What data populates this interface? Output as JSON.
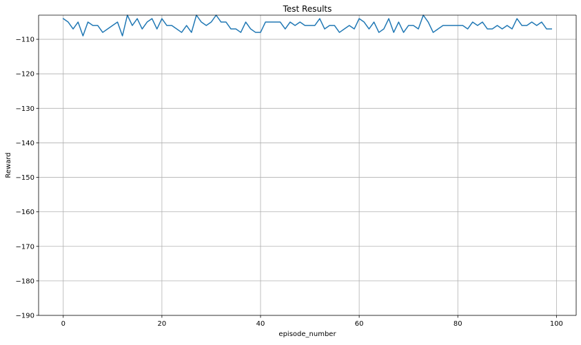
{
  "chart_data": {
    "type": "line",
    "title": "Test Results",
    "xlabel": "episode_number",
    "ylabel": "Reward",
    "xlim": [
      -5,
      104
    ],
    "ylim": [
      -190,
      -103
    ],
    "xticks": [
      0,
      20,
      40,
      60,
      80,
      100
    ],
    "yticks": [
      -110,
      -120,
      -130,
      -140,
      -150,
      -160,
      -170,
      -180,
      -190
    ],
    "xtick_labels": [
      "0",
      "20",
      "40",
      "60",
      "80",
      "100"
    ],
    "ytick_labels": [
      "−110",
      "−120",
      "−130",
      "−140",
      "−150",
      "−160",
      "−170",
      "−180",
      "−190"
    ],
    "grid": true,
    "series": [
      {
        "name": "reward",
        "color": "#1f77b4",
        "x": [
          0,
          1,
          2,
          3,
          4,
          5,
          6,
          7,
          8,
          9,
          10,
          11,
          12,
          13,
          14,
          15,
          16,
          17,
          18,
          19,
          20,
          21,
          22,
          23,
          24,
          25,
          26,
          27,
          28,
          29,
          30,
          31,
          32,
          33,
          34,
          35,
          36,
          37,
          38,
          39,
          40,
          41,
          42,
          43,
          44,
          45,
          46,
          47,
          48,
          49,
          50,
          51,
          52,
          53,
          54,
          55,
          56,
          57,
          58,
          59,
          60,
          61,
          62,
          63,
          64,
          65,
          66,
          67,
          68,
          69,
          70,
          71,
          72,
          73,
          74,
          75,
          76,
          77,
          78,
          79,
          80,
          81,
          82,
          83,
          84,
          85,
          86,
          87,
          88,
          89,
          90,
          91,
          92,
          93,
          94,
          95,
          96,
          97,
          98,
          99
        ],
        "values": [
          -104,
          -105,
          -107,
          -105,
          -109,
          -105,
          -106,
          -106,
          -108,
          -107,
          -106,
          -105,
          -109,
          -103,
          -106,
          -104,
          -107,
          -105,
          -104,
          -107,
          -104,
          -106,
          -106,
          -107,
          -108,
          -106,
          -108,
          -103,
          -105,
          -106,
          -105,
          -103,
          -105,
          -105,
          -107,
          -107,
          -108,
          -105,
          -107,
          -108,
          -108,
          -105,
          -105,
          -105,
          -105,
          -107,
          -105,
          -106,
          -105,
          -106,
          -106,
          -106,
          -104,
          -107,
          -106,
          -106,
          -108,
          -107,
          -106,
          -107,
          -104,
          -105,
          -107,
          -105,
          -108,
          -107,
          -104,
          -108,
          -105,
          -108,
          -106,
          -106,
          -107,
          -103,
          -105,
          -108,
          -107,
          -106,
          -106,
          -106,
          -106,
          -106,
          -107,
          -105,
          -106,
          -105,
          -107,
          -107,
          -106,
          -107,
          -106,
          -107,
          -104,
          -106,
          -106,
          -105,
          -106,
          -105,
          -107,
          -107
        ]
      }
    ]
  }
}
